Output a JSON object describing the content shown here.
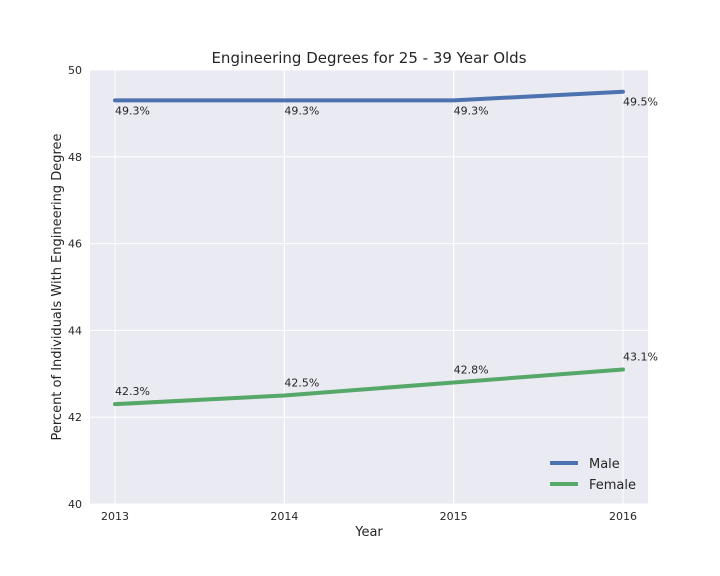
{
  "chart_data": {
    "type": "line",
    "title": "Engineering Degrees for 25 - 39 Year Olds",
    "xlabel": "Year",
    "ylabel": "Percent of Individuals With Engineering Degree",
    "x": [
      2013,
      2014,
      2015,
      2016
    ],
    "x_tick_labels": [
      "2013",
      "2014",
      "2015",
      "2016"
    ],
    "ylim": [
      40,
      50
    ],
    "y_ticks": [
      40,
      42,
      44,
      46,
      48,
      50
    ],
    "y_tick_labels": [
      "40",
      "42",
      "44",
      "46",
      "48",
      "50"
    ],
    "grid": true,
    "legend_position": "lower-right",
    "background_color": "#eaeaf2",
    "grid_color": "#ffffff",
    "series": [
      {
        "name": "Male",
        "color": "#4c72b0",
        "values": [
          49.3,
          49.3,
          49.3,
          49.5
        ],
        "labels": [
          "49.3%",
          "49.3%",
          "49.3%",
          "49.5%"
        ]
      },
      {
        "name": "Female",
        "color": "#55a868",
        "values": [
          42.3,
          42.5,
          42.8,
          43.1
        ],
        "labels": [
          "42.3%",
          "42.5%",
          "42.8%",
          "43.1%"
        ]
      }
    ]
  }
}
